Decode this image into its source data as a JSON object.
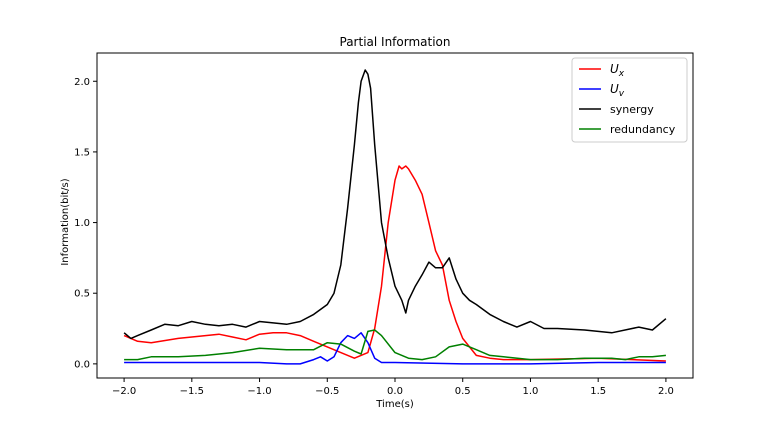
{
  "chart_data": {
    "type": "line",
    "title": "Partial Information",
    "xlabel": "Time(s)",
    "ylabel": "Information(bit/s)",
    "xlim": [
      -2.2,
      2.2
    ],
    "ylim": [
      -0.1,
      2.2
    ],
    "xticks": [
      -2.0,
      -1.5,
      -1.0,
      -0.5,
      0.0,
      0.5,
      1.0,
      1.5,
      2.0
    ],
    "xtick_labels": [
      "−2.0",
      "−1.5",
      "−1.0",
      "−0.5",
      "0.0",
      "0.5",
      "1.0",
      "1.5",
      "2.0"
    ],
    "yticks": [
      0.0,
      0.5,
      1.0,
      1.5,
      2.0
    ],
    "ytick_labels": [
      "0.0",
      "0.5",
      "1.0",
      "1.5",
      "2.0"
    ],
    "grid": false,
    "legend_position": "top-right",
    "series": [
      {
        "name": "U_x",
        "legend_main": "U",
        "legend_sub": "x",
        "color": "#ff0000",
        "x": [
          -2.0,
          -1.9,
          -1.8,
          -1.6,
          -1.4,
          -1.3,
          -1.2,
          -1.1,
          -1.0,
          -0.9,
          -0.8,
          -0.7,
          -0.6,
          -0.5,
          -0.4,
          -0.3,
          -0.2,
          -0.15,
          -0.1,
          -0.05,
          0.0,
          0.03,
          0.05,
          0.08,
          0.1,
          0.15,
          0.2,
          0.25,
          0.3,
          0.35,
          0.4,
          0.45,
          0.5,
          0.6,
          0.7,
          0.8,
          1.0,
          1.5,
          2.0
        ],
        "y": [
          0.2,
          0.16,
          0.15,
          0.18,
          0.2,
          0.21,
          0.19,
          0.17,
          0.21,
          0.22,
          0.22,
          0.2,
          0.16,
          0.12,
          0.08,
          0.04,
          0.08,
          0.25,
          0.55,
          1.0,
          1.3,
          1.4,
          1.38,
          1.4,
          1.38,
          1.3,
          1.2,
          1.0,
          0.8,
          0.7,
          0.45,
          0.3,
          0.18,
          0.06,
          0.04,
          0.03,
          0.03,
          0.04,
          0.02
        ]
      },
      {
        "name": "U_v",
        "legend_main": "U",
        "legend_sub": "v",
        "color": "#0000ff",
        "x": [
          -2.0,
          -1.5,
          -1.0,
          -0.8,
          -0.7,
          -0.6,
          -0.55,
          -0.5,
          -0.45,
          -0.4,
          -0.35,
          -0.3,
          -0.25,
          -0.2,
          -0.15,
          -0.1,
          0.0,
          0.5,
          1.0,
          1.5,
          2.0
        ],
        "y": [
          0.01,
          0.01,
          0.01,
          0.0,
          0.0,
          0.03,
          0.05,
          0.02,
          0.05,
          0.15,
          0.2,
          0.18,
          0.22,
          0.15,
          0.04,
          0.01,
          0.01,
          0.0,
          0.0,
          0.01,
          0.01
        ]
      },
      {
        "name": "synergy",
        "color": "#000000",
        "x": [
          -2.0,
          -1.95,
          -1.9,
          -1.8,
          -1.7,
          -1.6,
          -1.5,
          -1.4,
          -1.3,
          -1.2,
          -1.1,
          -1.0,
          -0.9,
          -0.8,
          -0.7,
          -0.6,
          -0.5,
          -0.45,
          -0.4,
          -0.35,
          -0.3,
          -0.27,
          -0.25,
          -0.22,
          -0.2,
          -0.18,
          -0.15,
          -0.1,
          -0.05,
          0.0,
          0.05,
          0.08,
          0.1,
          0.15,
          0.2,
          0.25,
          0.3,
          0.35,
          0.4,
          0.45,
          0.5,
          0.55,
          0.6,
          0.7,
          0.8,
          0.9,
          1.0,
          1.1,
          1.2,
          1.4,
          1.6,
          1.8,
          1.9,
          2.0
        ],
        "y": [
          0.22,
          0.18,
          0.2,
          0.24,
          0.28,
          0.27,
          0.3,
          0.28,
          0.27,
          0.28,
          0.26,
          0.3,
          0.29,
          0.28,
          0.3,
          0.35,
          0.42,
          0.5,
          0.7,
          1.1,
          1.55,
          1.85,
          2.0,
          2.08,
          2.05,
          1.95,
          1.55,
          1.0,
          0.75,
          0.55,
          0.45,
          0.36,
          0.45,
          0.55,
          0.63,
          0.72,
          0.68,
          0.68,
          0.75,
          0.6,
          0.5,
          0.45,
          0.42,
          0.35,
          0.3,
          0.26,
          0.3,
          0.25,
          0.25,
          0.24,
          0.22,
          0.26,
          0.24,
          0.32
        ]
      },
      {
        "name": "redundancy",
        "color": "#008000",
        "x": [
          -2.0,
          -1.9,
          -1.8,
          -1.6,
          -1.4,
          -1.2,
          -1.0,
          -0.8,
          -0.6,
          -0.5,
          -0.4,
          -0.3,
          -0.25,
          -0.2,
          -0.15,
          -0.1,
          0.0,
          0.1,
          0.2,
          0.3,
          0.4,
          0.5,
          0.6,
          0.7,
          0.8,
          1.0,
          1.2,
          1.4,
          1.6,
          1.7,
          1.8,
          1.9,
          2.0
        ],
        "y": [
          0.03,
          0.03,
          0.05,
          0.05,
          0.06,
          0.08,
          0.11,
          0.1,
          0.1,
          0.15,
          0.14,
          0.09,
          0.07,
          0.23,
          0.24,
          0.2,
          0.08,
          0.04,
          0.03,
          0.05,
          0.12,
          0.14,
          0.1,
          0.06,
          0.05,
          0.03,
          0.03,
          0.04,
          0.04,
          0.03,
          0.05,
          0.05,
          0.06
        ]
      }
    ]
  }
}
